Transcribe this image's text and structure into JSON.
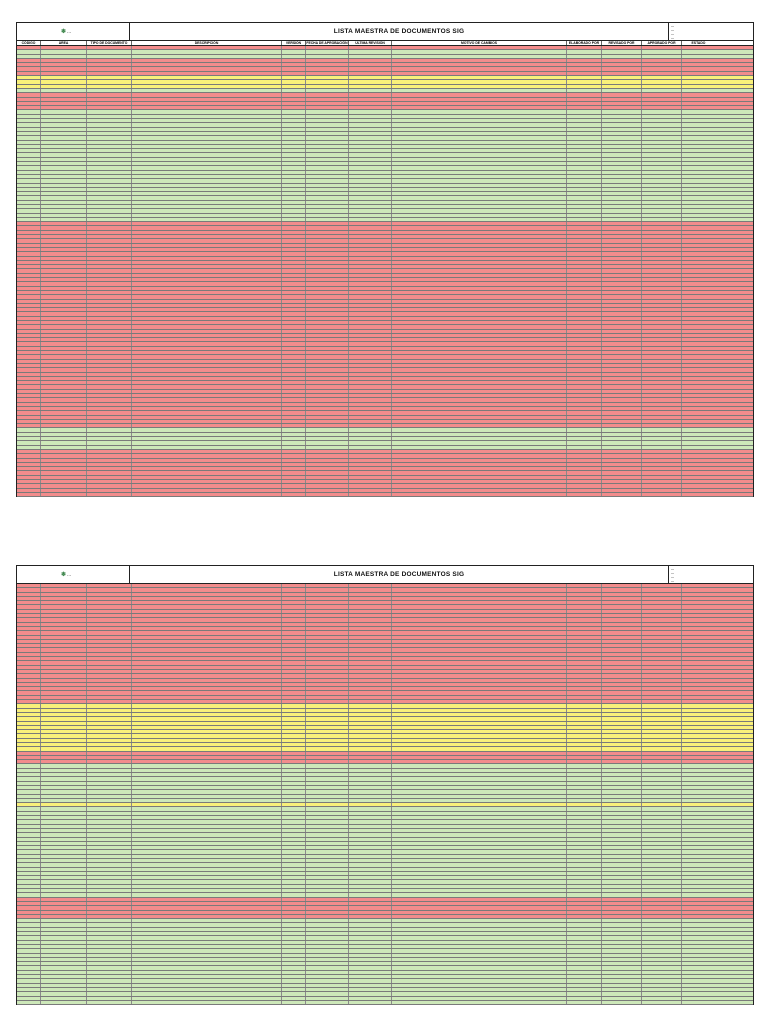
{
  "document": {
    "title": "LISTA MAESTRA DE DOCUMENTOS SIG",
    "logo_text": "...",
    "meta_lines": [
      "...",
      "...",
      "...",
      "..."
    ],
    "columns": [
      "CÓDIGO",
      "ÁREA",
      "TIPO DE DOCUMENTO",
      "DESCRIPCIÓN",
      "VERSIÓN",
      "FECHA DE APROBACIÓN",
      "ÚLTIMA REVISIÓN",
      "MOTIVO DE CAMBIOS",
      "ELABORADO POR",
      "REVISADO POR",
      "APROBADO POR",
      "ESTADO"
    ]
  },
  "colors": {
    "green": "#cde8b9",
    "red": "#f28c8c",
    "yellow": "#f8f07a",
    "border": "#222222"
  },
  "page1_rows": [
    "red",
    "green",
    "green",
    "red",
    "red",
    "red",
    "red",
    "yellow",
    "yellow",
    "yellow",
    "green",
    "red",
    "red",
    "red",
    "red",
    "green",
    "green",
    "green",
    "green",
    "green",
    "green",
    "green",
    "green",
    "green",
    "green",
    "green",
    "green",
    "green",
    "green",
    "green",
    "green",
    "green",
    "green",
    "green",
    "green",
    "green",
    "green",
    "green",
    "green",
    "green",
    "green",
    "red",
    "red",
    "red",
    "red",
    "red",
    "red",
    "red",
    "red",
    "red",
    "red",
    "red",
    "red",
    "red",
    "red",
    "red",
    "red",
    "red",
    "red",
    "red",
    "red",
    "red",
    "red",
    "red",
    "red",
    "red",
    "red",
    "red",
    "red",
    "red",
    "red",
    "red",
    "red",
    "red",
    "red",
    "red",
    "red",
    "red",
    "red",
    "red",
    "red",
    "red",
    "red",
    "red",
    "red",
    "red",
    "red",
    "red",
    "red",
    "green",
    "green",
    "green",
    "green",
    "green",
    "red",
    "red",
    "red",
    "red",
    "red",
    "red",
    "red",
    "red",
    "red",
    "red",
    "red"
  ],
  "page2_rows": [
    "red",
    "red",
    "red",
    "red",
    "red",
    "red",
    "red",
    "red",
    "red",
    "red",
    "red",
    "red",
    "red",
    "red",
    "red",
    "red",
    "red",
    "red",
    "red",
    "red",
    "red",
    "red",
    "red",
    "red",
    "red",
    "red",
    "red",
    "red",
    "yellow",
    "yellow",
    "yellow",
    "yellow",
    "yellow",
    "yellow",
    "yellow",
    "yellow",
    "yellow",
    "yellow",
    "yellow",
    "red",
    "red",
    "red",
    "green",
    "green",
    "green",
    "green",
    "green",
    "green",
    "green",
    "green",
    "green",
    "yellow",
    "green",
    "green",
    "green",
    "green",
    "green",
    "green",
    "green",
    "green",
    "green",
    "green",
    "green",
    "green",
    "green",
    "green",
    "green",
    "green",
    "green",
    "green",
    "green",
    "green",
    "green",
    "red",
    "red",
    "red",
    "red",
    "red",
    "green",
    "green",
    "green",
    "green",
    "green",
    "green",
    "green",
    "green",
    "green",
    "green",
    "green",
    "green",
    "green",
    "green",
    "green",
    "green",
    "green",
    "green",
    "green",
    "green"
  ]
}
